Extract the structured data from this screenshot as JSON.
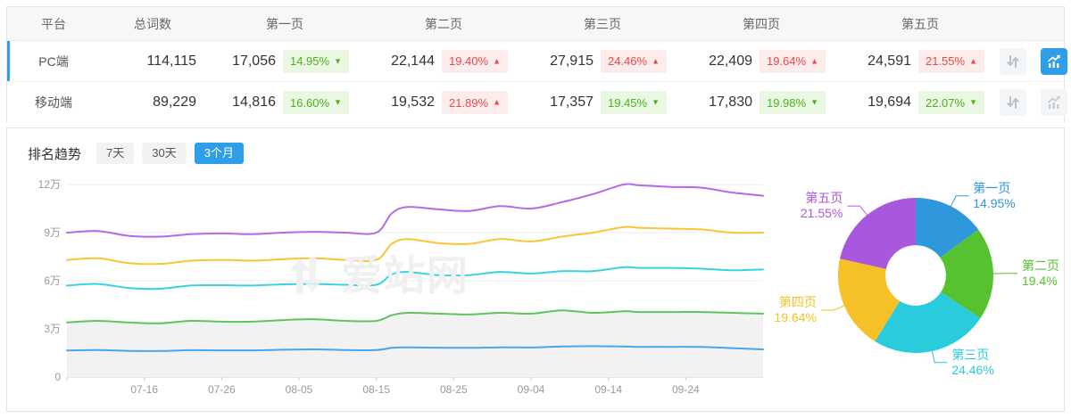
{
  "accent_color": "#2f9ee8",
  "table": {
    "columns": [
      "平台",
      "总词数",
      "第一页",
      "第二页",
      "第三页",
      "第四页",
      "第五页"
    ],
    "rows": [
      {
        "platform": "PC端",
        "total": "114,115",
        "selected": true,
        "pages": [
          {
            "count": "17,056",
            "pct": "14.95%",
            "direction": "down"
          },
          {
            "count": "22,144",
            "pct": "19.40%",
            "direction": "up"
          },
          {
            "count": "27,915",
            "pct": "24.46%",
            "direction": "up"
          },
          {
            "count": "22,409",
            "pct": "19.64%",
            "direction": "up"
          },
          {
            "count": "24,591",
            "pct": "21.55%",
            "direction": "up"
          }
        ],
        "actions": {
          "sort_active": false,
          "chart_active": true
        }
      },
      {
        "platform": "移动端",
        "total": "89,229",
        "selected": false,
        "pages": [
          {
            "count": "14,816",
            "pct": "16.60%",
            "direction": "down"
          },
          {
            "count": "19,532",
            "pct": "21.89%",
            "direction": "up"
          },
          {
            "count": "17,357",
            "pct": "19.45%",
            "direction": "down"
          },
          {
            "count": "17,830",
            "pct": "19.98%",
            "direction": "down"
          },
          {
            "count": "19,694",
            "pct": "22.07%",
            "direction": "down"
          }
        ],
        "actions": {
          "sort_active": false,
          "chart_active": false
        }
      }
    ],
    "badge_colors": {
      "up_text": "#e84a4a",
      "up_bg": "#fdecec",
      "down_text": "#4cb31e",
      "down_bg": "#eaf7e2"
    },
    "glyphs": {
      "up_arrow": "▲",
      "down_arrow": "▼"
    },
    "icons": {
      "sort": "sort-arrows-icon",
      "chart": "trend-chart-icon"
    }
  },
  "trend": {
    "title": "排名趋势",
    "tabs": [
      {
        "label": "7天",
        "active": false
      },
      {
        "label": "30天",
        "active": false
      },
      {
        "label": "3个月",
        "active": true
      }
    ]
  },
  "watermark": {
    "text": "爱站网",
    "icon": "aizhan-logo-icon"
  },
  "chart_data": [
    {
      "type": "line",
      "title": "排名趋势 (3个月)",
      "stacked_cumulative": true,
      "grid": true,
      "x_axis": {
        "tick_labels": [
          "07-16",
          "07-26",
          "08-05",
          "08-15",
          "08-25",
          "09-04",
          "09-14",
          "09-24"
        ],
        "tick_days": [
          10,
          20,
          30,
          40,
          50,
          60,
          70,
          80
        ],
        "domain_days": [
          0,
          90
        ]
      },
      "y_axis": {
        "tick_labels": [
          "0",
          "3万",
          "6万",
          "9万",
          "12万"
        ],
        "tick_wan": [
          0,
          3,
          6,
          9,
          12
        ],
        "unit": "万 (×10,000 keywords)",
        "ylim_wan": [
          0,
          12
        ]
      },
      "days": [
        0,
        4,
        8,
        12,
        16,
        20,
        24,
        28,
        32,
        36,
        40,
        42,
        44,
        48,
        52,
        56,
        60,
        64,
        68,
        72,
        74,
        78,
        82,
        86,
        90
      ],
      "series": [
        {
          "name": "第一页",
          "color": "#47a7ee",
          "area": false,
          "values_wan": [
            1.65,
            1.68,
            1.63,
            1.62,
            1.67,
            1.66,
            1.66,
            1.7,
            1.72,
            1.68,
            1.68,
            1.82,
            1.85,
            1.83,
            1.82,
            1.85,
            1.84,
            1.9,
            1.92,
            1.9,
            1.88,
            1.88,
            1.87,
            1.8,
            1.72
          ]
        },
        {
          "name": "第二页",
          "color": "#5ec45e",
          "area": true,
          "area_color": "#f2f2f2",
          "values_wan": [
            3.4,
            3.5,
            3.4,
            3.35,
            3.5,
            3.45,
            3.45,
            3.55,
            3.6,
            3.5,
            3.5,
            3.85,
            4.0,
            3.95,
            3.9,
            4.0,
            3.95,
            4.15,
            4.0,
            4.1,
            4.05,
            4.05,
            4.05,
            4.0,
            3.95
          ]
        },
        {
          "name": "第三页",
          "color": "#3ad2e0",
          "area": false,
          "values_wan": [
            5.7,
            5.8,
            5.55,
            5.5,
            5.7,
            5.72,
            5.7,
            5.78,
            5.8,
            5.75,
            5.75,
            6.4,
            6.55,
            6.35,
            6.35,
            6.55,
            6.45,
            6.6,
            6.6,
            6.85,
            6.8,
            6.8,
            6.75,
            6.65,
            6.7
          ]
        },
        {
          "name": "第四页",
          "color": "#fbc531",
          "area": false,
          "values_wan": [
            7.3,
            7.4,
            7.1,
            7.05,
            7.25,
            7.3,
            7.25,
            7.35,
            7.4,
            7.3,
            7.3,
            8.3,
            8.6,
            8.35,
            8.3,
            8.6,
            8.45,
            8.75,
            9.0,
            9.35,
            9.3,
            9.25,
            9.2,
            9.0,
            9.0
          ]
        },
        {
          "name": "第五页",
          "color": "#b36ae8",
          "area": false,
          "values_wan": [
            9.0,
            9.1,
            8.8,
            8.75,
            8.9,
            8.95,
            8.9,
            9.0,
            9.05,
            9.0,
            9.0,
            10.2,
            10.6,
            10.45,
            10.35,
            10.65,
            10.5,
            10.9,
            11.4,
            12.0,
            11.95,
            11.85,
            11.8,
            11.5,
            11.3
          ]
        }
      ]
    },
    {
      "type": "donut",
      "start_angle_deg": 0,
      "clockwise": true,
      "inner_radius_ratio": 0.39,
      "slices": [
        {
          "label": "第一页",
          "pct": 14.95,
          "pct_label": "14.95%",
          "color": "#2f97dc"
        },
        {
          "label": "第二页",
          "pct": 19.4,
          "pct_label": "19.4%",
          "color": "#57c22f"
        },
        {
          "label": "第三页",
          "pct": 24.46,
          "pct_label": "24.46%",
          "color": "#29cbdd"
        },
        {
          "label": "第四页",
          "pct": 19.64,
          "pct_label": "19.64%",
          "color": "#f5c126"
        },
        {
          "label": "第五页",
          "pct": 21.55,
          "pct_label": "21.55%",
          "color": "#a958dd"
        }
      ]
    }
  ]
}
